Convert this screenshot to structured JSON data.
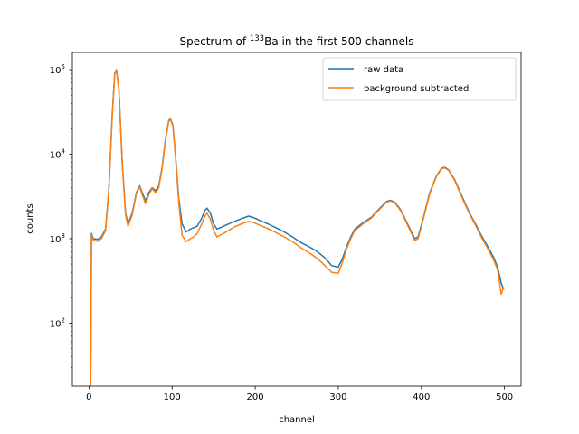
{
  "chart_data": {
    "type": "line",
    "title": "Spectrum of ¹³³Ba in the first 500 channels",
    "title_parts": {
      "pre": "Spectrum of ",
      "sup": "133",
      "post": "Ba in the first 500 channels"
    },
    "xlabel": "channel",
    "ylabel": "counts",
    "xlim": [
      -20,
      520
    ],
    "ylim": [
      18,
      160000
    ],
    "yscale": "log",
    "xticks": [
      0,
      100,
      200,
      300,
      400,
      500
    ],
    "yticks": [
      {
        "value": 100,
        "base": "10",
        "exp": "2"
      },
      {
        "value": 1000,
        "base": "10",
        "exp": "3"
      },
      {
        "value": 10000,
        "base": "10",
        "exp": "4"
      },
      {
        "value": 100000,
        "base": "10",
        "exp": "5"
      }
    ],
    "grid": false,
    "legend_position": "top-right",
    "series": [
      {
        "name": "raw data",
        "color": "#1f77b4",
        "points": [
          [
            2,
            18
          ],
          [
            3,
            1150
          ],
          [
            5,
            1000
          ],
          [
            10,
            980
          ],
          [
            15,
            1050
          ],
          [
            20,
            1300
          ],
          [
            24,
            4000
          ],
          [
            28,
            30000
          ],
          [
            31,
            90000
          ],
          [
            33,
            100000
          ],
          [
            36,
            60000
          ],
          [
            40,
            8000
          ],
          [
            44,
            2000
          ],
          [
            47,
            1500
          ],
          [
            52,
            2000
          ],
          [
            57,
            3500
          ],
          [
            61,
            4200
          ],
          [
            64,
            3500
          ],
          [
            68,
            2800
          ],
          [
            72,
            3500
          ],
          [
            76,
            4000
          ],
          [
            80,
            3700
          ],
          [
            84,
            4200
          ],
          [
            88,
            7000
          ],
          [
            92,
            15000
          ],
          [
            96,
            25000
          ],
          [
            98,
            26000
          ],
          [
            101,
            22000
          ],
          [
            104,
            10000
          ],
          [
            108,
            3000
          ],
          [
            112,
            1500
          ],
          [
            117,
            1200
          ],
          [
            122,
            1300
          ],
          [
            126,
            1350
          ],
          [
            130,
            1400
          ],
          [
            135,
            1700
          ],
          [
            140,
            2200
          ],
          [
            142,
            2300
          ],
          [
            146,
            2000
          ],
          [
            150,
            1500
          ],
          [
            154,
            1300
          ],
          [
            158,
            1350
          ],
          [
            165,
            1450
          ],
          [
            175,
            1600
          ],
          [
            185,
            1750
          ],
          [
            192,
            1850
          ],
          [
            198,
            1780
          ],
          [
            205,
            1650
          ],
          [
            215,
            1500
          ],
          [
            225,
            1350
          ],
          [
            235,
            1200
          ],
          [
            245,
            1050
          ],
          [
            255,
            900
          ],
          [
            265,
            800
          ],
          [
            275,
            700
          ],
          [
            285,
            580
          ],
          [
            292,
            480
          ],
          [
            300,
            460
          ],
          [
            305,
            580
          ],
          [
            310,
            800
          ],
          [
            315,
            1050
          ],
          [
            320,
            1300
          ],
          [
            330,
            1550
          ],
          [
            340,
            1800
          ],
          [
            350,
            2300
          ],
          [
            358,
            2750
          ],
          [
            363,
            2850
          ],
          [
            368,
            2700
          ],
          [
            375,
            2200
          ],
          [
            382,
            1600
          ],
          [
            388,
            1200
          ],
          [
            392,
            1000
          ],
          [
            396,
            1050
          ],
          [
            402,
            1700
          ],
          [
            410,
            3500
          ],
          [
            418,
            5500
          ],
          [
            424,
            6800
          ],
          [
            428,
            7000
          ],
          [
            433,
            6500
          ],
          [
            440,
            5000
          ],
          [
            450,
            3000
          ],
          [
            458,
            2000
          ],
          [
            465,
            1500
          ],
          [
            472,
            1100
          ],
          [
            480,
            800
          ],
          [
            487,
            600
          ],
          [
            492,
            450
          ],
          [
            496,
            300
          ],
          [
            499,
            250
          ]
        ]
      },
      {
        "name": "background subtracted",
        "color": "#ff7f0e",
        "points": [
          [
            2,
            18
          ],
          [
            3,
            1100
          ],
          [
            5,
            950
          ],
          [
            10,
            930
          ],
          [
            15,
            1000
          ],
          [
            20,
            1250
          ],
          [
            24,
            3900
          ],
          [
            28,
            29000
          ],
          [
            31,
            88000
          ],
          [
            33,
            98000
          ],
          [
            36,
            58000
          ],
          [
            40,
            7800
          ],
          [
            44,
            1900
          ],
          [
            47,
            1400
          ],
          [
            52,
            1900
          ],
          [
            57,
            3400
          ],
          [
            61,
            4100
          ],
          [
            64,
            3300
          ],
          [
            68,
            2600
          ],
          [
            72,
            3300
          ],
          [
            76,
            3900
          ],
          [
            80,
            3500
          ],
          [
            84,
            4000
          ],
          [
            88,
            6800
          ],
          [
            92,
            14500
          ],
          [
            96,
            24500
          ],
          [
            98,
            25500
          ],
          [
            101,
            21500
          ],
          [
            104,
            9500
          ],
          [
            108,
            2700
          ],
          [
            112,
            1100
          ],
          [
            117,
            920
          ],
          [
            122,
            1000
          ],
          [
            126,
            1050
          ],
          [
            130,
            1150
          ],
          [
            135,
            1450
          ],
          [
            140,
            1900
          ],
          [
            142,
            2000
          ],
          [
            146,
            1700
          ],
          [
            150,
            1250
          ],
          [
            154,
            1050
          ],
          [
            158,
            1100
          ],
          [
            165,
            1200
          ],
          [
            175,
            1380
          ],
          [
            185,
            1520
          ],
          [
            192,
            1600
          ],
          [
            198,
            1560
          ],
          [
            205,
            1450
          ],
          [
            215,
            1320
          ],
          [
            225,
            1180
          ],
          [
            235,
            1050
          ],
          [
            245,
            920
          ],
          [
            255,
            780
          ],
          [
            265,
            680
          ],
          [
            275,
            580
          ],
          [
            285,
            470
          ],
          [
            292,
            400
          ],
          [
            300,
            390
          ],
          [
            305,
            520
          ],
          [
            310,
            760
          ],
          [
            315,
            1000
          ],
          [
            320,
            1250
          ],
          [
            330,
            1500
          ],
          [
            340,
            1760
          ],
          [
            350,
            2250
          ],
          [
            358,
            2700
          ],
          [
            363,
            2800
          ],
          [
            368,
            2650
          ],
          [
            375,
            2150
          ],
          [
            382,
            1550
          ],
          [
            388,
            1150
          ],
          [
            392,
            950
          ],
          [
            396,
            1000
          ],
          [
            402,
            1650
          ],
          [
            410,
            3400
          ],
          [
            418,
            5400
          ],
          [
            424,
            6700
          ],
          [
            428,
            6900
          ],
          [
            433,
            6400
          ],
          [
            440,
            4900
          ],
          [
            450,
            2900
          ],
          [
            458,
            1950
          ],
          [
            465,
            1450
          ],
          [
            472,
            1050
          ],
          [
            480,
            760
          ],
          [
            487,
            560
          ],
          [
            492,
            420
          ],
          [
            496,
            220
          ],
          [
            499,
            270
          ]
        ]
      }
    ]
  }
}
